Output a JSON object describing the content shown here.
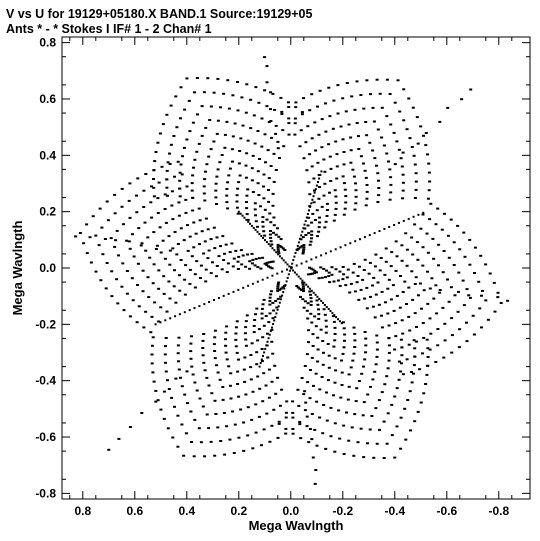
{
  "header": {
    "line1": "V vs U for 19129+05180.X BAND.1   Source:19129+05",
    "line2": "Ants * - *     Stokes I  IF# 1 - 2  Chan# 1"
  },
  "chart_data": {
    "type": "scatter",
    "xlabel": "Mega Wavlngth",
    "ylabel": "Mega Wavlngth",
    "xlim": [
      0.88,
      -0.92
    ],
    "ylim": [
      -0.82,
      0.82
    ],
    "x_ticks": [
      0.8,
      0.6,
      0.4,
      0.2,
      0.0,
      -0.2,
      -0.4,
      -0.6,
      -0.8
    ],
    "x_tick_labels": [
      "0.8",
      "0.6",
      "0.4",
      "0.2",
      "0.0",
      "-0.2",
      "-0.4",
      "-0.6",
      "-0.8"
    ],
    "y_ticks": [
      0.8,
      0.6,
      0.4,
      0.2,
      0.0,
      -0.2,
      -0.4,
      -0.6,
      -0.8
    ],
    "y_tick_labels": [
      "0.8",
      "0.6",
      "0.4",
      "0.2",
      "0.0",
      "-0.2",
      "-0.4",
      "-0.6",
      "-0.8"
    ],
    "grid": false,
    "marker_color": "#000000",
    "coverage": {
      "description": "six-armed snowflake uv-coverage, arms along 60, 120, 180 degree baseline directions",
      "arm_tips": [
        {
          "x": 0.72,
          "y": -0.66
        },
        {
          "x": -0.72,
          "y": 0.66
        },
        {
          "x": 0.1,
          "y": 0.78
        },
        {
          "x": -0.1,
          "y": -0.78
        },
        {
          "x": 0.85,
          "y": 0.12
        },
        {
          "x": -0.87,
          "y": -0.12
        }
      ],
      "dense_tracks": [
        {
          "x1": 0.52,
          "y1": -0.2,
          "x2": -0.52,
          "y2": 0.2
        },
        {
          "x1": 0.2,
          "y1": 0.2,
          "x2": -0.2,
          "y2": -0.2
        },
        {
          "x1": 0.12,
          "y1": -0.35,
          "x2": -0.12,
          "y2": 0.35
        }
      ]
    }
  }
}
